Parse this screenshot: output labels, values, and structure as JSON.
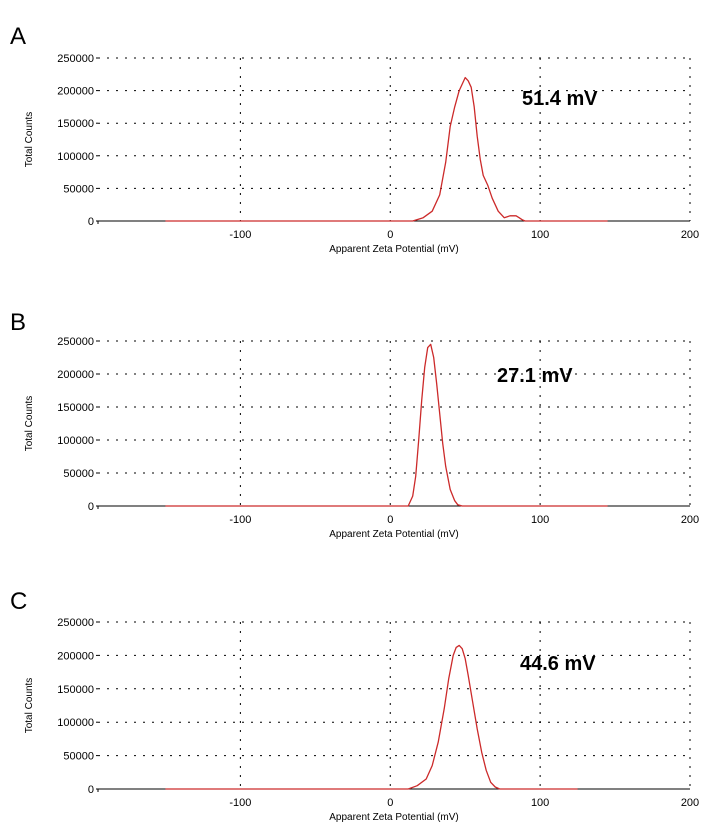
{
  "colors": {
    "series": "#cc2a2a",
    "axis": "#000000",
    "grid": "#000000",
    "background": "#ffffff"
  },
  "chart_data": [
    {
      "panel_label": "A",
      "type": "line",
      "xlabel": "Apparent Zeta Potential (mV)",
      "ylabel": "Total Counts",
      "xlim": [
        -195,
        200
      ],
      "ylim": [
        0,
        250000
      ],
      "x_ticks": [
        -100,
        0,
        100,
        200
      ],
      "x_tick_labels": [
        "-100",
        "0",
        "100",
        "200"
      ],
      "y_ticks": [
        0,
        50000,
        100000,
        150000,
        200000,
        250000
      ],
      "y_tick_labels": [
        "0",
        "50000",
        "100000",
        "150000",
        "200000",
        "250000"
      ],
      "grid": true,
      "annotation": "51.4 mV",
      "series": [
        {
          "x": [
            -150,
            15,
            22,
            28,
            33,
            37,
            40,
            43,
            46,
            48,
            50,
            52,
            54,
            56,
            58,
            60,
            62,
            65,
            68,
            72,
            76,
            80,
            84,
            86,
            88,
            90,
            95,
            145
          ],
          "y": [
            0,
            0,
            5000,
            15000,
            40000,
            90000,
            145000,
            175000,
            200000,
            210000,
            220000,
            215000,
            205000,
            175000,
            130000,
            95000,
            70000,
            55000,
            35000,
            15000,
            5000,
            8000,
            8000,
            5000,
            2000,
            0,
            0,
            0
          ]
        }
      ]
    },
    {
      "panel_label": "B",
      "type": "line",
      "xlabel": "Apparent Zeta Potential (mV)",
      "ylabel": "Total Counts",
      "xlim": [
        -195,
        200
      ],
      "ylim": [
        0,
        250000
      ],
      "x_ticks": [
        -100,
        0,
        100,
        200
      ],
      "x_tick_labels": [
        "-100",
        "0",
        "100",
        "200"
      ],
      "y_ticks": [
        0,
        50000,
        100000,
        150000,
        200000,
        250000
      ],
      "y_tick_labels": [
        "0",
        "50000",
        "100000",
        "150000",
        "200000",
        "250000"
      ],
      "grid": true,
      "annotation": "27.1 mV",
      "series": [
        {
          "x": [
            -150,
            12,
            15,
            17,
            19,
            21,
            23,
            25,
            27,
            29,
            31,
            33,
            35,
            37,
            40,
            43,
            45,
            48,
            145
          ],
          "y": [
            0,
            0,
            15000,
            45000,
            100000,
            160000,
            210000,
            240000,
            245000,
            225000,
            185000,
            140000,
            95000,
            60000,
            25000,
            8000,
            2000,
            0,
            0
          ]
        }
      ]
    },
    {
      "panel_label": "C",
      "type": "line",
      "xlabel": "Apparent Zeta Potential (mV)",
      "ylabel": "Total Counts",
      "xlim": [
        -195,
        200
      ],
      "ylim": [
        0,
        250000
      ],
      "x_ticks": [
        -100,
        0,
        100,
        200
      ],
      "x_tick_labels": [
        "-100",
        "0",
        "100",
        "200"
      ],
      "y_ticks": [
        0,
        50000,
        100000,
        150000,
        200000,
        250000
      ],
      "y_tick_labels": [
        "0",
        "50000",
        "100000",
        "150000",
        "200000",
        "250000"
      ],
      "grid": true,
      "annotation": "44.6 mV",
      "series": [
        {
          "x": [
            -150,
            12,
            18,
            24,
            28,
            32,
            36,
            39,
            42,
            44,
            46,
            48,
            50,
            52,
            55,
            58,
            61,
            64,
            67,
            70,
            73,
            125
          ],
          "y": [
            0,
            0,
            5000,
            15000,
            35000,
            70000,
            120000,
            165000,
            200000,
            212000,
            215000,
            210000,
            195000,
            170000,
            130000,
            90000,
            55000,
            28000,
            10000,
            3000,
            0,
            0
          ]
        }
      ]
    }
  ]
}
